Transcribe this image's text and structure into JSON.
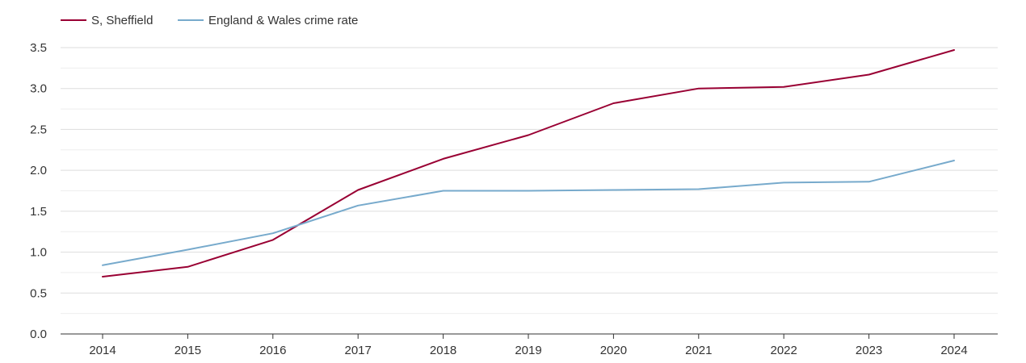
{
  "chart_data": {
    "type": "line",
    "title": "",
    "xlabel": "",
    "ylabel": "",
    "x": [
      "2014",
      "2015",
      "2016",
      "2017",
      "2018",
      "2019",
      "2020",
      "2021",
      "2022",
      "2023",
      "2024"
    ],
    "ylim": [
      0,
      3.5
    ],
    "yticks": [
      "0.0",
      "0.5",
      "1.0",
      "1.5",
      "2.0",
      "2.5",
      "3.0",
      "3.5"
    ],
    "grid": true,
    "legend_position": "top-left",
    "series": [
      {
        "name": "S, Sheffield",
        "color": "#990033",
        "values": [
          0.7,
          0.82,
          1.15,
          1.76,
          2.14,
          2.43,
          2.82,
          3.0,
          3.02,
          3.17,
          3.47
        ]
      },
      {
        "name": "England & Wales crime rate",
        "color": "#77aacc",
        "values": [
          0.84,
          1.03,
          1.23,
          1.57,
          1.75,
          1.75,
          1.76,
          1.77,
          1.85,
          1.86,
          2.12
        ]
      }
    ]
  }
}
